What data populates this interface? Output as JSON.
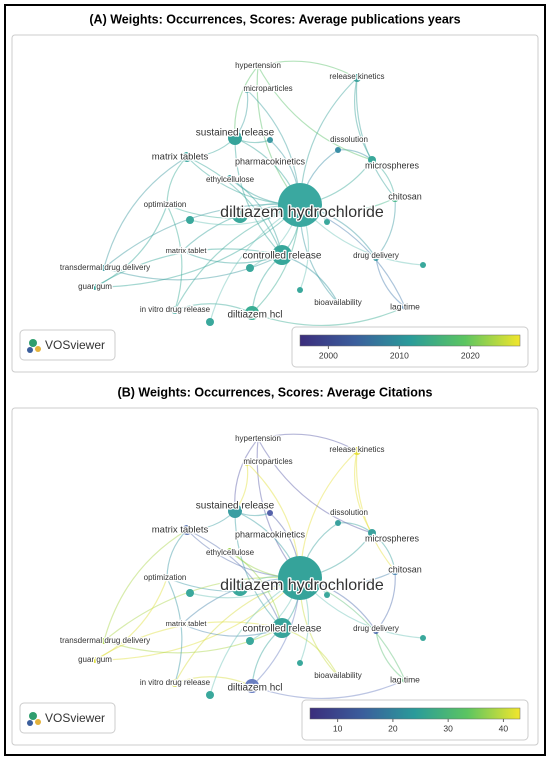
{
  "panels": [
    {
      "title": "(A) Weights: Occurrences, Scores: Average publications years",
      "nodes": [
        {
          "label": "hypertension",
          "color": "#5cc26a"
        },
        {
          "label": "microparticles",
          "color": "#3f9fa0"
        },
        {
          "label": "release kinetics",
          "color": "#3aa29c"
        },
        {
          "label": "sustained release",
          "color": "#35a39a"
        },
        {
          "label": "dissolution",
          "color": "#3a8ea6"
        },
        {
          "label": "pharmacokinetics",
          "color": "#3c98a2"
        },
        {
          "label": "matrix tablets",
          "color": "#33a39a"
        },
        {
          "label": "microspheres",
          "color": "#3aa89a"
        },
        {
          "label": "ethylcellulose",
          "color": "#35a09c"
        },
        {
          "label": "chitosan",
          "color": "#48b88c"
        },
        {
          "label": "optimization",
          "color": "#3aaa96"
        },
        {
          "label": "diltiazem hydrochloride",
          "color": "#3aa8a0"
        },
        {
          "label": "drug delivery",
          "color": "#3c9aa2"
        },
        {
          "label": "matrix tablet",
          "color": "#35a29c"
        },
        {
          "label": "controlled release",
          "color": "#37a79b"
        },
        {
          "label": "transdermal drug delivery",
          "color": "#3b9aa0"
        },
        {
          "label": "guar gum",
          "color": "#36a69a"
        },
        {
          "label": "bioavailability",
          "color": "#3a9aa2"
        },
        {
          "label": "lag time",
          "color": "#4a7fb0"
        },
        {
          "label": "in vitro drug release",
          "color": "#3aa89a"
        },
        {
          "label": "diltiazem hcl",
          "color": "#3bae95"
        }
      ],
      "logo": "VOSviewer",
      "colorbar": {
        "lim": [
          1996,
          2027
        ],
        "ticks": [
          2000,
          2010,
          2020
        ]
      }
    },
    {
      "title": "(B) Weights: Occurrences, Scores: Average Citations",
      "nodes": [
        {
          "label": "hypertension",
          "color": "#5a5ea8"
        },
        {
          "label": "microparticles",
          "color": "#e2e03a"
        },
        {
          "label": "release kinetics",
          "color": "#e6df3c"
        },
        {
          "label": "sustained release",
          "color": "#3a9ea2"
        },
        {
          "label": "dissolution",
          "color": "#3aa19e"
        },
        {
          "label": "pharmacokinetics",
          "color": "#5562aa"
        },
        {
          "label": "matrix tablets",
          "color": "#5872b0"
        },
        {
          "label": "microspheres",
          "color": "#3aa29e"
        },
        {
          "label": "ethylcellulose",
          "color": "#9ad24a"
        },
        {
          "label": "chitosan",
          "color": "#4a86b0"
        },
        {
          "label": "optimization",
          "color": "#3a96a4"
        },
        {
          "label": "diltiazem hydrochloride",
          "color": "#35a39a"
        },
        {
          "label": "drug delivery",
          "color": "#4f6fb0"
        },
        {
          "label": "matrix tablet",
          "color": "#4a88ae"
        },
        {
          "label": "controlled release",
          "color": "#37a49b"
        },
        {
          "label": "transdermal drug delivery",
          "color": "#a8d446"
        },
        {
          "label": "guar gum",
          "color": "#e0df3e"
        },
        {
          "label": "bioavailability",
          "color": "#c8dc40"
        },
        {
          "label": "lag time",
          "color": "#62c27a"
        },
        {
          "label": "in vitro drug release",
          "color": "#d8dc3e"
        },
        {
          "label": "diltiazem hcl",
          "color": "#6a7fc2"
        }
      ],
      "logo": "VOSviewer",
      "colorbar": {
        "lim": [
          5,
          43
        ],
        "ticks": [
          10,
          20,
          30,
          40
        ]
      }
    }
  ]
}
